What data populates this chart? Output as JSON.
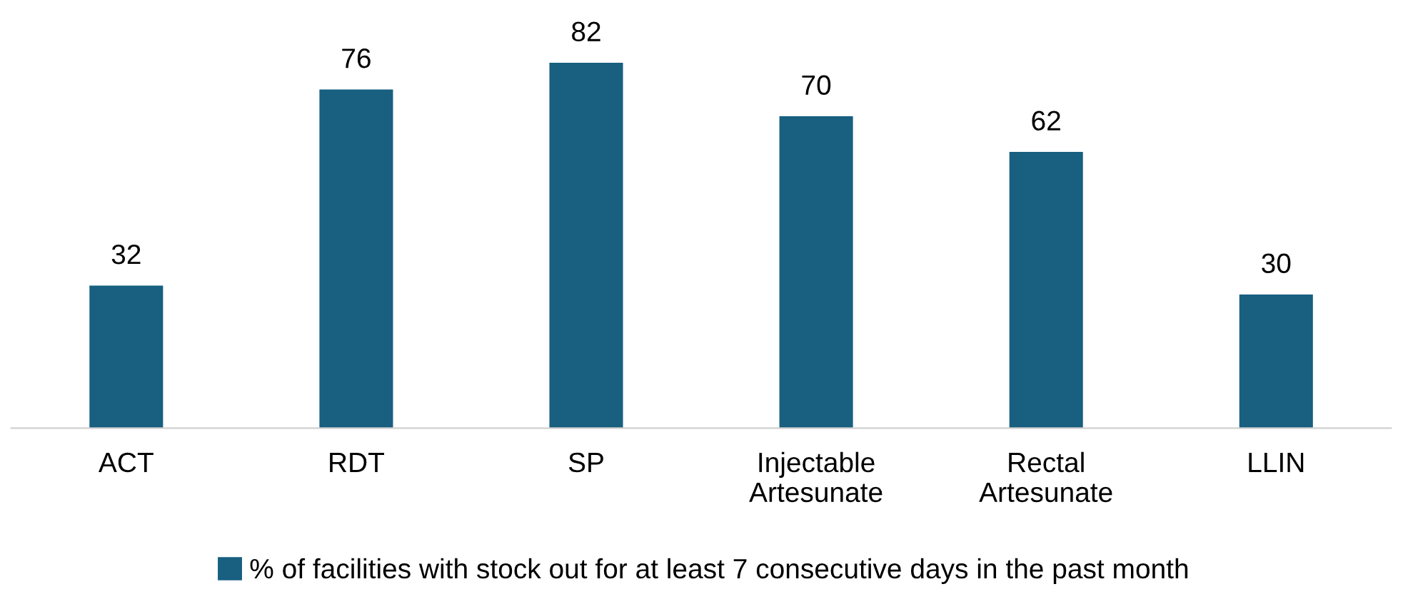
{
  "chart_data": {
    "type": "bar",
    "categories": [
      "ACT",
      "RDT",
      "SP",
      "Injectable\nArtesunate",
      "Rectal\nArtesunate",
      "LLIN"
    ],
    "series": [
      {
        "name": "% of facilities with stock out for at least 7 consecutive days in the past month",
        "color": "#185f80",
        "values": [
          32,
          76,
          82,
          70,
          62,
          30
        ]
      }
    ],
    "data_labels": true,
    "tick_labels": "x",
    "grid": false,
    "legend": "bottom"
  }
}
